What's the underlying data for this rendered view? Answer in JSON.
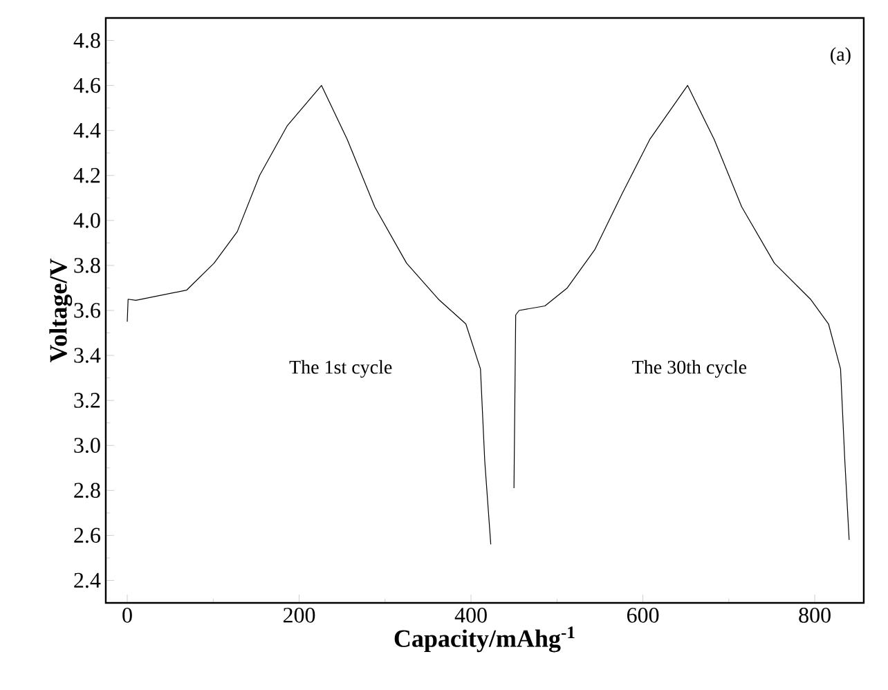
{
  "chart_data": {
    "type": "line",
    "xlabel": "**Capacity/mAhg$^{-1}$**",
    "ylabel": "**Voltage/V**",
    "annotations": [
      "The 1st cycle",
      "The 30th cycle",
      "(a)"
    ],
    "xlim": [
      -25,
      857
    ],
    "ylim": [
      2.3,
      4.9
    ],
    "xticks": [
      0,
      200,
      400,
      600,
      800
    ],
    "yticks": [
      2.4,
      2.6,
      2.8,
      {
        "value": 3,
        "label": "3.0"
      },
      3.2,
      3.4,
      3.6,
      3.8,
      {
        "value": 4,
        "label": "4.0"
      },
      4.2,
      4.4,
      4.6,
      4.8
    ],
    "series": [
      {
        "color": "#000000",
        "x": [
          0,
          1,
          10,
          69,
          101,
          128,
          154,
          186,
          226,
          256,
          288,
          325,
          362,
          394,
          411,
          416,
          423
        ],
        "values": [
          3.55,
          3.65,
          3.645,
          3.69,
          3.81,
          3.95,
          4.2,
          4.42,
          4.6,
          4.36,
          4.06,
          3.81,
          3.65,
          3.54,
          3.34,
          2.93,
          2.56
        ]
      },
      {
        "color": "#000000",
        "x": [
          450,
          452,
          456,
          486,
          512,
          544,
          576,
          608,
          652,
          683,
          715,
          753,
          795,
          816,
          830,
          835,
          840
        ],
        "values": [
          2.81,
          3.58,
          3.6,
          3.62,
          3.7,
          3.87,
          4.12,
          4.36,
          4.6,
          4.36,
          4.06,
          3.81,
          3.65,
          3.54,
          3.34,
          2.93,
          2.58
        ]
      }
    ],
    "grid": false,
    "legend": false,
    "marker": "none",
    "line_style": "solid"
  }
}
